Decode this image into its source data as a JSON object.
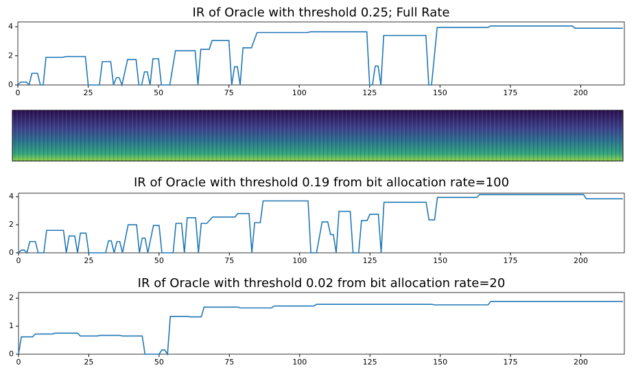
{
  "chart_data": [
    {
      "type": "line",
      "title": "IR of Oracle with threshold 0.25; Full Rate",
      "x": [
        0,
        1,
        3,
        4,
        5,
        7,
        8,
        9,
        10,
        16,
        17,
        24,
        25,
        29,
        30,
        33,
        34,
        35,
        36,
        37,
        39,
        42,
        43,
        44,
        45,
        46,
        47,
        48,
        50,
        51,
        54,
        56,
        63,
        64,
        65,
        68,
        69,
        75,
        76,
        77,
        78,
        79,
        80,
        83,
        85,
        103,
        104,
        124,
        125,
        126,
        127,
        128,
        129,
        130,
        145,
        146,
        147,
        149,
        167,
        168,
        197,
        198,
        215
      ],
      "series": [
        {
          "color": "#1f77b4",
          "values": [
            0,
            0.2,
            0.2,
            0,
            0.8,
            0.8,
            0,
            0,
            1.9,
            1.9,
            1.95,
            1.95,
            0,
            0,
            1.6,
            1.6,
            0,
            0.5,
            0.5,
            0,
            1.75,
            1.75,
            0,
            0,
            0.9,
            0.9,
            0,
            1.8,
            1.8,
            0,
            0,
            2.35,
            2.35,
            0,
            2.45,
            2.45,
            3.05,
            3.05,
            0,
            1.25,
            1.25,
            0,
            2.55,
            2.55,
            3.6,
            3.6,
            3.65,
            3.65,
            0,
            0,
            1.3,
            1.3,
            0,
            3.4,
            3.4,
            0,
            0,
            3.95,
            3.95,
            4.05,
            4.05,
            3.9,
            3.9
          ]
        }
      ],
      "xlim": [
        0,
        215.5
      ],
      "xticks": [
        0,
        25,
        50,
        75,
        100,
        125,
        150,
        175,
        200
      ],
      "ylim": [
        0,
        4.33
      ],
      "yticks": [
        0,
        2,
        4
      ]
    },
    {
      "type": "line",
      "title": "IR of Oracle with threshold 0.19 from bit allocation rate=100",
      "x": [
        0,
        1,
        2,
        3,
        4,
        6,
        7,
        9,
        10,
        16,
        17,
        18,
        20,
        21,
        22,
        24,
        25,
        31,
        32,
        33,
        34,
        35,
        36,
        37,
        39,
        42,
        43,
        44,
        45,
        46,
        48,
        50,
        51,
        55,
        56,
        58,
        59,
        60,
        63,
        64,
        65,
        67,
        69,
        77,
        78,
        82,
        83,
        84,
        86,
        87,
        103,
        104,
        106,
        108,
        110,
        111,
        112,
        113,
        114,
        118,
        119,
        121,
        122,
        124,
        125,
        128,
        129,
        130,
        145,
        146,
        148,
        149,
        163,
        164,
        201,
        202,
        215
      ],
      "series": [
        {
          "color": "#1f77b4",
          "values": [
            0,
            0.2,
            0.2,
            0,
            0.8,
            0.8,
            0,
            0,
            1.6,
            1.6,
            0,
            1.2,
            1.2,
            0,
            1.4,
            1.4,
            0,
            0,
            0.85,
            0.85,
            0,
            0.8,
            0.8,
            0,
            2,
            2,
            0,
            1.05,
            1.05,
            0,
            1.95,
            1.95,
            0,
            0,
            2.1,
            2.1,
            0,
            2.5,
            2.5,
            0,
            2.1,
            2.1,
            2.55,
            2.55,
            2.8,
            2.8,
            0,
            2.15,
            2.15,
            3.7,
            3.7,
            0,
            0,
            2.2,
            2.2,
            1.3,
            1.3,
            0,
            2.95,
            2.95,
            0,
            0,
            2.3,
            2.3,
            2.75,
            2.75,
            0,
            3.6,
            3.6,
            2.35,
            2.35,
            3.95,
            3.95,
            4.15,
            4.15,
            3.85,
            3.85
          ]
        }
      ],
      "xlim": [
        0,
        215.5
      ],
      "xticks": [
        0,
        25,
        50,
        75,
        100,
        125,
        150,
        175,
        200
      ],
      "ylim": [
        0,
        4.25
      ],
      "yticks": [
        0,
        2,
        4
      ]
    },
    {
      "type": "line",
      "title": "IR of Oracle with threshold 0.02 from bit allocation rate=20",
      "x": [
        0,
        1,
        5,
        6,
        12,
        13,
        21,
        22,
        28,
        29,
        36,
        37,
        44,
        45,
        50,
        51,
        52,
        53,
        54,
        60,
        61,
        65,
        66,
        78,
        79,
        90,
        91,
        105,
        106,
        147,
        148,
        167,
        168,
        215
      ],
      "series": [
        {
          "color": "#1f77b4",
          "values": [
            0,
            0.62,
            0.62,
            0.72,
            0.72,
            0.75,
            0.75,
            0.65,
            0.65,
            0.67,
            0.67,
            0.65,
            0.65,
            0,
            0,
            0.15,
            0.15,
            0,
            1.35,
            1.35,
            1.33,
            1.33,
            1.68,
            1.68,
            1.65,
            1.65,
            1.72,
            1.72,
            1.78,
            1.78,
            1.76,
            1.76,
            1.88,
            1.88
          ]
        }
      ],
      "xlim": [
        0,
        215.5
      ],
      "xticks": [
        0,
        25,
        50,
        75,
        100,
        125,
        150,
        175,
        200
      ],
      "ylim": [
        0,
        2.2
      ],
      "yticks": [
        0,
        1,
        2
      ]
    }
  ]
}
